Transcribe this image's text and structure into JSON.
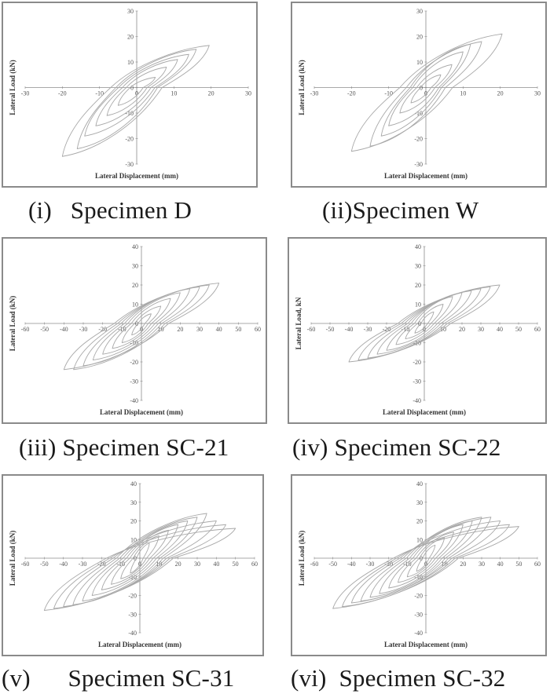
{
  "colors": {
    "axis": "#8c8c8c",
    "curve": "#a8a8a8",
    "frame": "#8a8a8a",
    "text": "#1a1a1a"
  },
  "chart_data": [
    {
      "type": "line",
      "caption": "(i)   Specimen D",
      "xlabel": "Lateral Displacement (mm)",
      "ylabel": "Lateral Load (kN)",
      "xlim": [
        -30,
        30
      ],
      "ylim": [
        -30,
        30
      ],
      "xticks": [
        -30,
        -20,
        -10,
        0,
        10,
        20,
        30
      ],
      "yticks": [
        -30,
        -20,
        -10,
        0,
        10,
        20,
        30
      ],
      "cycles": [
        {
          "pos": [
            5,
            4
          ],
          "neg": [
            -5,
            -7
          ]
        },
        {
          "pos": [
            8,
            8
          ],
          "neg": [
            -8,
            -11
          ]
        },
        {
          "pos": [
            11,
            11
          ],
          "neg": [
            -11,
            -15
          ]
        },
        {
          "pos": [
            14,
            13
          ],
          "neg": [
            -14,
            -19
          ]
        },
        {
          "pos": [
            16,
            15
          ],
          "neg": [
            -16,
            -24
          ]
        },
        {
          "pos": [
            19.5,
            16.5
          ],
          "neg": [
            -20,
            -27
          ]
        }
      ]
    },
    {
      "type": "line",
      "caption": "(ii)Specimen W",
      "xlabel": "Lateral Displacement (mm)",
      "ylabel": "Lateral Load (kN)",
      "xlim": [
        -30,
        30
      ],
      "ylim": [
        -30,
        30
      ],
      "xticks": [
        -30,
        -20,
        -10,
        0,
        10,
        20,
        30
      ],
      "yticks": [
        -30,
        -20,
        -10,
        0,
        10,
        20,
        30
      ],
      "cycles": [
        {
          "pos": [
            4,
            5
          ],
          "neg": [
            -4,
            -6
          ]
        },
        {
          "pos": [
            7,
            9
          ],
          "neg": [
            -7,
            -10
          ]
        },
        {
          "pos": [
            10,
            14
          ],
          "neg": [
            -10,
            -15
          ]
        },
        {
          "pos": [
            12,
            17
          ],
          "neg": [
            -12,
            -19
          ]
        },
        {
          "pos": [
            15,
            18
          ],
          "neg": [
            -15,
            -23
          ]
        },
        {
          "pos": [
            20.5,
            21
          ],
          "neg": [
            -20,
            -25
          ]
        }
      ]
    },
    {
      "type": "line",
      "caption": "(iii) Specimen SC-21",
      "xlabel": "Lateral Displacement (mm)",
      "ylabel": "Lateral Load (kN)",
      "xlim": [
        -60,
        60
      ],
      "ylim": [
        -40,
        40
      ],
      "xticks": [
        -60,
        -50,
        -40,
        -30,
        -20,
        -10,
        0,
        10,
        20,
        30,
        40,
        50,
        60
      ],
      "yticks": [
        -40,
        -30,
        -20,
        -10,
        0,
        10,
        20,
        30,
        40
      ],
      "cycles": [
        {
          "pos": [
            5,
            5
          ],
          "neg": [
            -5,
            -6
          ]
        },
        {
          "pos": [
            10,
            9
          ],
          "neg": [
            -10,
            -10
          ]
        },
        {
          "pos": [
            15,
            13
          ],
          "neg": [
            -15,
            -13
          ]
        },
        {
          "pos": [
            20,
            16
          ],
          "neg": [
            -20,
            -16
          ]
        },
        {
          "pos": [
            25,
            18
          ],
          "neg": [
            -25,
            -19
          ]
        },
        {
          "pos": [
            30,
            19
          ],
          "neg": [
            -30,
            -22
          ]
        },
        {
          "pos": [
            35,
            20
          ],
          "neg": [
            -35,
            -24
          ]
        },
        {
          "pos": [
            40,
            21
          ],
          "neg": [
            -40,
            -24
          ]
        }
      ]
    },
    {
      "type": "line",
      "caption": "(iv) Specimen SC-22",
      "xlabel": "Lateral Displacement (mm)",
      "ylabel": "Lateral Load, kN",
      "xlim": [
        -60,
        60
      ],
      "ylim": [
        -40,
        40
      ],
      "xticks": [
        -60,
        -50,
        -40,
        -30,
        -20,
        -10,
        0,
        10,
        20,
        30,
        40,
        50,
        60
      ],
      "yticks": [
        -40,
        -30,
        -20,
        -10,
        0,
        10,
        20,
        30,
        40
      ],
      "cycles": [
        {
          "pos": [
            5,
            6
          ],
          "neg": [
            -5,
            -5
          ]
        },
        {
          "pos": [
            10,
            10
          ],
          "neg": [
            -10,
            -8
          ]
        },
        {
          "pos": [
            15,
            14
          ],
          "neg": [
            -15,
            -11
          ]
        },
        {
          "pos": [
            20,
            16
          ],
          "neg": [
            -20,
            -14
          ]
        },
        {
          "pos": [
            25,
            17
          ],
          "neg": [
            -25,
            -16
          ]
        },
        {
          "pos": [
            30,
            18
          ],
          "neg": [
            -30,
            -18
          ]
        },
        {
          "pos": [
            35,
            19
          ],
          "neg": [
            -35,
            -19
          ]
        },
        {
          "pos": [
            40,
            20
          ],
          "neg": [
            -40,
            -20
          ]
        }
      ]
    },
    {
      "type": "line",
      "caption": "(v)      Specimen SC-31",
      "xlabel": "Lateral Displacement (mm)",
      "ylabel": "Lateral Load (kN)",
      "xlim": [
        -60,
        60
      ],
      "ylim": [
        -40,
        40
      ],
      "xticks": [
        -60,
        -50,
        -40,
        -30,
        -20,
        -10,
        0,
        10,
        20,
        30,
        40,
        50,
        60
      ],
      "yticks": [
        -40,
        -30,
        -20,
        -10,
        0,
        10,
        20,
        30,
        40
      ],
      "cycles": [
        {
          "pos": [
            5,
            8
          ],
          "neg": [
            -5,
            -8
          ]
        },
        {
          "pos": [
            10,
            12
          ],
          "neg": [
            -10,
            -11
          ]
        },
        {
          "pos": [
            15,
            15
          ],
          "neg": [
            -15,
            -14
          ]
        },
        {
          "pos": [
            20,
            18
          ],
          "neg": [
            -20,
            -17
          ]
        },
        {
          "pos": [
            25,
            20
          ],
          "neg": [
            -25,
            -20
          ]
        },
        {
          "pos": [
            30,
            22
          ],
          "neg": [
            -30,
            -23
          ]
        },
        {
          "pos": [
            35,
            24
          ],
          "neg": [
            -35,
            -25
          ]
        },
        {
          "pos": [
            40,
            20
          ],
          "neg": [
            -40,
            -26
          ]
        },
        {
          "pos": [
            45,
            18
          ],
          "neg": [
            -45,
            -27
          ]
        },
        {
          "pos": [
            50,
            16
          ],
          "neg": [
            -50,
            -28
          ]
        }
      ]
    },
    {
      "type": "line",
      "caption": "(vi)  Specimen SC-32",
      "xlabel": "Lateral Displacement (mm)",
      "ylabel": "Lateral Load (kN)",
      "xlim": [
        -60,
        60
      ],
      "ylim": [
        -40,
        40
      ],
      "xticks": [
        -60,
        -50,
        -40,
        -30,
        -20,
        -10,
        0,
        10,
        20,
        30,
        40,
        50,
        60
      ],
      "yticks": [
        -40,
        -30,
        -20,
        -10,
        0,
        10,
        20,
        30,
        40
      ],
      "cycles": [
        {
          "pos": [
            5,
            7
          ],
          "neg": [
            -5,
            -7
          ]
        },
        {
          "pos": [
            10,
            11
          ],
          "neg": [
            -10,
            -10
          ]
        },
        {
          "pos": [
            15,
            14
          ],
          "neg": [
            -15,
            -13
          ]
        },
        {
          "pos": [
            20,
            18
          ],
          "neg": [
            -20,
            -16
          ]
        },
        {
          "pos": [
            25,
            20
          ],
          "neg": [
            -25,
            -19
          ]
        },
        {
          "pos": [
            30,
            22
          ],
          "neg": [
            -30,
            -21
          ]
        },
        {
          "pos": [
            35,
            22
          ],
          "neg": [
            -35,
            -23
          ]
        },
        {
          "pos": [
            40,
            20
          ],
          "neg": [
            -40,
            -24
          ]
        },
        {
          "pos": [
            45,
            18
          ],
          "neg": [
            -45,
            -26
          ]
        },
        {
          "pos": [
            50,
            17
          ],
          "neg": [
            -50,
            -27
          ]
        }
      ]
    }
  ]
}
